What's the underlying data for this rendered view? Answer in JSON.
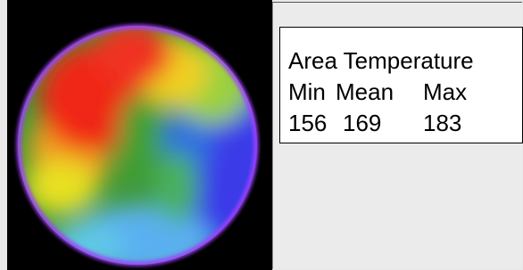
{
  "panel": {
    "title": "Area Temperature",
    "columns": [
      "Min",
      "Mean",
      "Max"
    ],
    "values": [
      156,
      169,
      183
    ]
  }
}
